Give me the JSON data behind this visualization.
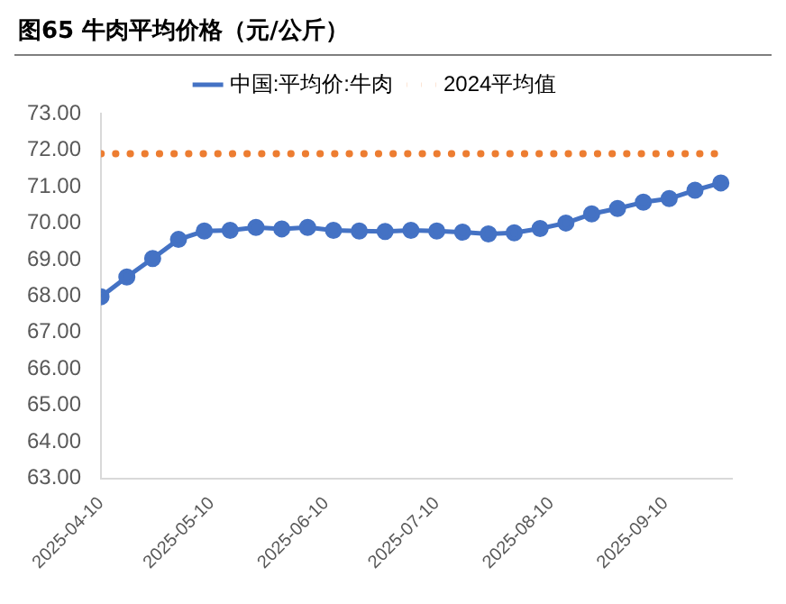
{
  "chart_data": {
    "type": "line",
    "title": "图65 牛肉平均价格（元/公斤）",
    "x": [
      "2025-04-10",
      "2025-04-17",
      "2025-04-24",
      "2025-05-01",
      "2025-05-08",
      "2025-05-15",
      "2025-05-22",
      "2025-05-29",
      "2025-06-05",
      "2025-06-12",
      "2025-06-19",
      "2025-06-26",
      "2025-07-03",
      "2025-07-10",
      "2025-07-17",
      "2025-07-24",
      "2025-07-31",
      "2025-08-07",
      "2025-08-14",
      "2025-08-21",
      "2025-08-28",
      "2025-09-04",
      "2025-09-11",
      "2025-09-18",
      "2025-09-25"
    ],
    "series": [
      {
        "name": "中国:平均价:牛肉",
        "color": "#4472c4",
        "marker": "circle",
        "line_style": "solid",
        "values": [
          67.98,
          68.52,
          69.03,
          69.55,
          69.78,
          69.8,
          69.88,
          69.84,
          69.88,
          69.8,
          69.78,
          69.77,
          69.8,
          69.78,
          69.75,
          69.7,
          69.73,
          69.85,
          70.0,
          70.25,
          70.4,
          70.57,
          70.67,
          70.9,
          71.1
        ]
      },
      {
        "name": "2024平均值",
        "color": "#ed7d31",
        "marker": "none",
        "line_style": "dotted",
        "values": [
          71.9,
          71.9,
          71.9,
          71.9,
          71.9,
          71.9,
          71.9,
          71.9,
          71.9,
          71.9,
          71.9,
          71.9,
          71.9,
          71.9,
          71.9,
          71.9,
          71.9,
          71.9,
          71.9,
          71.9,
          71.9,
          71.9,
          71.9,
          71.9,
          71.9
        ]
      }
    ],
    "xlim": [
      "2025-04-10",
      "2025-09-28"
    ],
    "xticks": [
      "2025-04-10",
      "2025-05-10",
      "2025-06-10",
      "2025-07-10",
      "2025-08-10",
      "2025-09-10"
    ],
    "ylim": [
      63,
      73
    ],
    "yticks": [
      {
        "value": 63,
        "label": "63.00"
      },
      {
        "value": 64,
        "label": "64.00"
      },
      {
        "value": 65,
        "label": "65.00"
      },
      {
        "value": 66,
        "label": "66.00"
      },
      {
        "value": 67,
        "label": "67.00"
      },
      {
        "value": 68,
        "label": "68.00"
      },
      {
        "value": 69,
        "label": "69.00"
      },
      {
        "value": 70,
        "label": "70.00"
      },
      {
        "value": 71,
        "label": "71.00"
      },
      {
        "value": 72,
        "label": "72.00"
      },
      {
        "value": 73,
        "label": "73.00"
      }
    ],
    "grid": false,
    "legend": "top"
  }
}
